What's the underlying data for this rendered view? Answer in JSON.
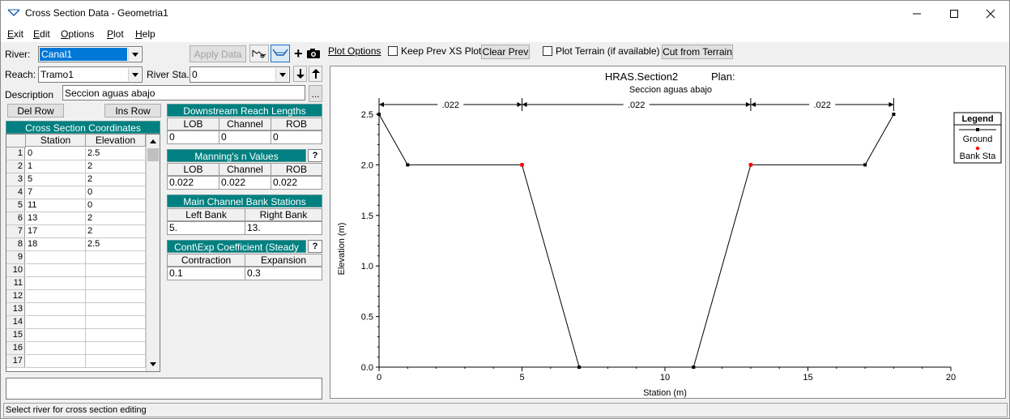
{
  "window": {
    "title": "Cross Section Data - Geometria1",
    "controls": {
      "minimize": "minimize",
      "maximize": "maximize",
      "close": "close"
    }
  },
  "menu": [
    {
      "label": "Exit",
      "accel": "E",
      "rest": "xit"
    },
    {
      "label": "Edit",
      "accel": "E",
      "rest": "dit"
    },
    {
      "label": "Options",
      "accel": "O",
      "rest": "ptions"
    },
    {
      "label": "Plot",
      "accel": "P",
      "rest": "lot"
    },
    {
      "label": "Help",
      "accel": "H",
      "rest": "elp"
    }
  ],
  "editor": {
    "river_label": "River:",
    "river_value": "Canal1",
    "reach_label": "Reach:",
    "reach_value": "Tramo1",
    "river_sta_label": "River Sta.:",
    "river_sta_value": "0",
    "apply_data_label": "Apply Data",
    "description_label": "Description",
    "description_value": "Seccion aguas abajo",
    "ellipsis_label": "...",
    "del_row_label": "Del Row",
    "ins_row_label": "Ins Row"
  },
  "xs_table": {
    "title": "Cross Section Coordinates",
    "columns": [
      "Station",
      "Elevation"
    ],
    "rows": [
      {
        "n": "1",
        "station": "0",
        "elevation": "2.5"
      },
      {
        "n": "2",
        "station": "1",
        "elevation": "2"
      },
      {
        "n": "3",
        "station": "5",
        "elevation": "2"
      },
      {
        "n": "4",
        "station": "7",
        "elevation": "0"
      },
      {
        "n": "5",
        "station": "11",
        "elevation": "0"
      },
      {
        "n": "6",
        "station": "13",
        "elevation": "2"
      },
      {
        "n": "7",
        "station": "17",
        "elevation": "2"
      },
      {
        "n": "8",
        "station": "18",
        "elevation": "2.5"
      },
      {
        "n": "9",
        "station": "",
        "elevation": ""
      },
      {
        "n": "10",
        "station": "",
        "elevation": ""
      },
      {
        "n": "11",
        "station": "",
        "elevation": ""
      },
      {
        "n": "12",
        "station": "",
        "elevation": ""
      },
      {
        "n": "13",
        "station": "",
        "elevation": ""
      },
      {
        "n": "14",
        "station": "",
        "elevation": ""
      },
      {
        "n": "15",
        "station": "",
        "elevation": ""
      },
      {
        "n": "16",
        "station": "",
        "elevation": ""
      },
      {
        "n": "17",
        "station": "",
        "elevation": ""
      }
    ]
  },
  "reach_lengths": {
    "title": "Downstream Reach Lengths",
    "columns": [
      "LOB",
      "Channel",
      "ROB"
    ],
    "values": [
      "0",
      "0",
      "0"
    ]
  },
  "mannings": {
    "title": "Manning's n Values",
    "help": "?",
    "columns": [
      "LOB",
      "Channel",
      "ROB"
    ],
    "values": [
      "0.022",
      "0.022",
      "0.022"
    ]
  },
  "bank_stations": {
    "title": "Main Channel Bank Stations",
    "columns": [
      "Left Bank",
      "Right Bank"
    ],
    "values": [
      "5.",
      "13."
    ]
  },
  "contexp": {
    "title": "Cont\\Exp Coefficient (Steady",
    "help": "?",
    "columns": [
      "Contraction",
      "Expansion"
    ],
    "values": [
      "0.1",
      "0.3"
    ]
  },
  "plot_toolbar": {
    "plot_options_label": "Plot Options",
    "keep_prev_label": "Keep Prev XS Plots",
    "clear_prev_label": "Clear Prev",
    "plot_terrain_label": "Plot Terrain (if available)",
    "cut_terrain_label": "Cut from Terrain"
  },
  "legend": {
    "title": "Legend",
    "items": [
      "Ground",
      "Bank Sta"
    ]
  },
  "status": "Select river for cross section editing",
  "colors": {
    "teal": "#008080",
    "bank_marker": "#ff0000",
    "river_selected": "#0078d7"
  },
  "chart_data": {
    "type": "line",
    "title": "HRAS.Section2",
    "plan_label": "Plan:",
    "subtitle": "Seccion aguas abajo",
    "xlabel": "Station (m)",
    "ylabel": "Elevation (m)",
    "xlim": [
      0,
      20
    ],
    "ylim": [
      0,
      2.5
    ],
    "xticks": [
      0,
      5,
      10,
      15,
      20
    ],
    "yticks": [
      0.0,
      0.5,
      1.0,
      1.5,
      2.0,
      2.5
    ],
    "ytick_labels": [
      "0.0",
      "0.5",
      "1.0",
      "1.5",
      "2.0",
      "2.5"
    ],
    "series": [
      {
        "name": "Ground",
        "x": [
          0,
          1,
          5,
          7,
          11,
          13,
          17,
          18
        ],
        "y": [
          2.5,
          2,
          2,
          0,
          0,
          2,
          2,
          2.5
        ]
      }
    ],
    "bank_stations": [
      {
        "x": 5,
        "y": 2
      },
      {
        "x": 13,
        "y": 2
      }
    ],
    "n_values": [
      {
        "from": 0,
        "to": 5,
        "label": ".022"
      },
      {
        "from": 5,
        "to": 13,
        "label": ".022"
      },
      {
        "from": 13,
        "to": 18,
        "label": ".022"
      }
    ]
  }
}
